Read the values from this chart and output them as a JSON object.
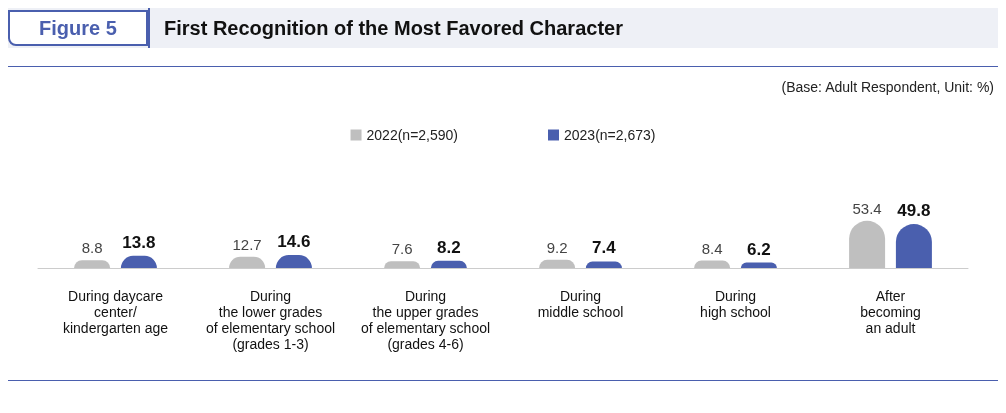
{
  "chart_data": {
    "type": "bar",
    "title": "First Recognition of the Most Favored Character",
    "annotations": [
      "Figure 5",
      "(Base: Adult Respondent, Unit: %)"
    ],
    "categories": [
      "During daycare\ncenter/\nkindergarten age",
      "During\nthe lower grades\nof elementary school\n(grades 1-3)",
      "During\nthe upper grades\nof elementary school\n(grades 4-6)",
      "During\nmiddle school",
      "During\nhigh school",
      "After\nbecoming\nan adult"
    ],
    "series": [
      {
        "name": "2022(n=2,590)",
        "color": "#bfbfbf",
        "values": [
          8.8,
          12.7,
          7.6,
          9.2,
          8.4,
          53.4
        ]
      },
      {
        "name": "2023(n=2,673)",
        "color": "#4a5fae",
        "values": [
          13.8,
          14.6,
          8.2,
          7.4,
          6.2,
          49.8
        ]
      }
    ],
    "data_labels": true,
    "legend": "top",
    "grid": false
  }
}
